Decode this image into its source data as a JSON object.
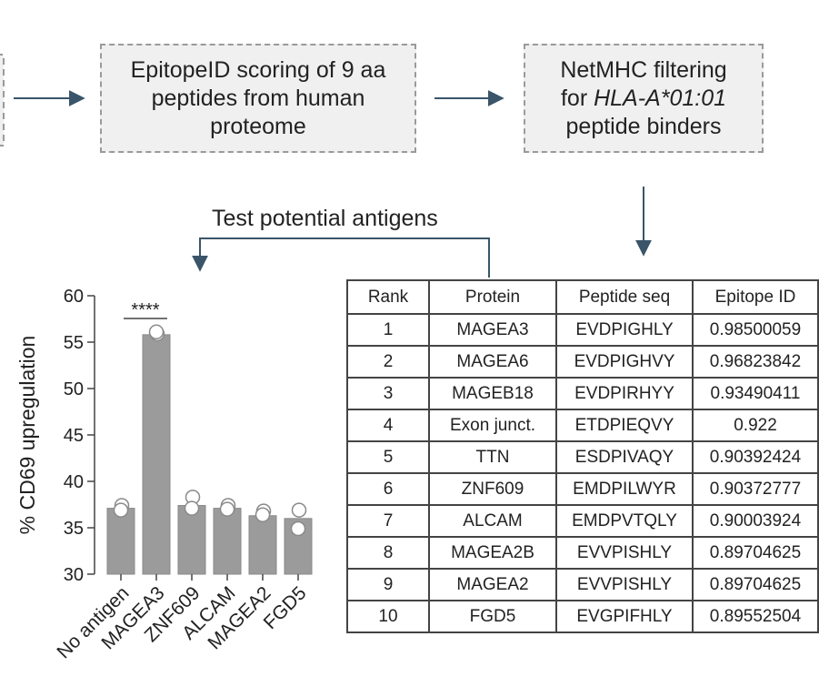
{
  "flow": {
    "box1_lines": [
      "EpitopeID scoring of 9 aa",
      "peptides from human",
      "proteome"
    ],
    "box2_line1": "NetMHC filtering",
    "box2_line2_prefix": "for ",
    "box2_line2_italic": "HLA-A*01:01",
    "box2_line3": "peptide binders",
    "test_label": "Test potential antigens"
  },
  "chart_data": {
    "type": "bar",
    "categories": [
      "No antigen",
      "MAGEA3",
      "ZNF609",
      "ALCAM",
      "MAGEA2",
      "FGD5"
    ],
    "values": [
      37.1,
      55.8,
      37.4,
      37.1,
      36.3,
      36.0
    ],
    "points": [
      [
        37.4,
        36.9
      ],
      [
        55.9,
        56.1
      ],
      [
        38.3,
        37.1
      ],
      [
        37.4,
        37.0
      ],
      [
        36.8,
        36.4
      ],
      [
        36.9,
        34.9
      ]
    ],
    "ylabel": "% CD69 upregulation",
    "ylim": [
      30,
      60
    ],
    "yticks": [
      30,
      35,
      40,
      45,
      50,
      55,
      60
    ],
    "significance": {
      "label": "****",
      "category": "MAGEA3"
    },
    "bar_color": "#9b9b9b"
  },
  "table": {
    "headers": [
      "Rank",
      "Protein",
      "Peptide seq",
      "Epitope ID"
    ],
    "rows": [
      [
        "1",
        "MAGEA3",
        "EVDPIGHLY",
        "0.98500059"
      ],
      [
        "2",
        "MAGEA6",
        "EVDPIGHVY",
        "0.96823842"
      ],
      [
        "3",
        "MAGEB18",
        "EVDPIRHYY",
        "0.93490411"
      ],
      [
        "4",
        "Exon junct.",
        "ETDPIEQVY",
        "0.922"
      ],
      [
        "5",
        "TTN",
        "ESDPIVAQY",
        "0.90392424"
      ],
      [
        "6",
        "ZNF609",
        "EMDPILWYR",
        "0.90372777"
      ],
      [
        "7",
        "ALCAM",
        "EMDPVTQLY",
        "0.90003924"
      ],
      [
        "8",
        "MAGEA2B",
        "EVVPISHLY",
        "0.89704625"
      ],
      [
        "9",
        "MAGEA2",
        "EVVPISHLY",
        "0.89704625"
      ],
      [
        "10",
        "FGD5",
        "EVGPIFHLY",
        "0.89552504"
      ]
    ]
  }
}
